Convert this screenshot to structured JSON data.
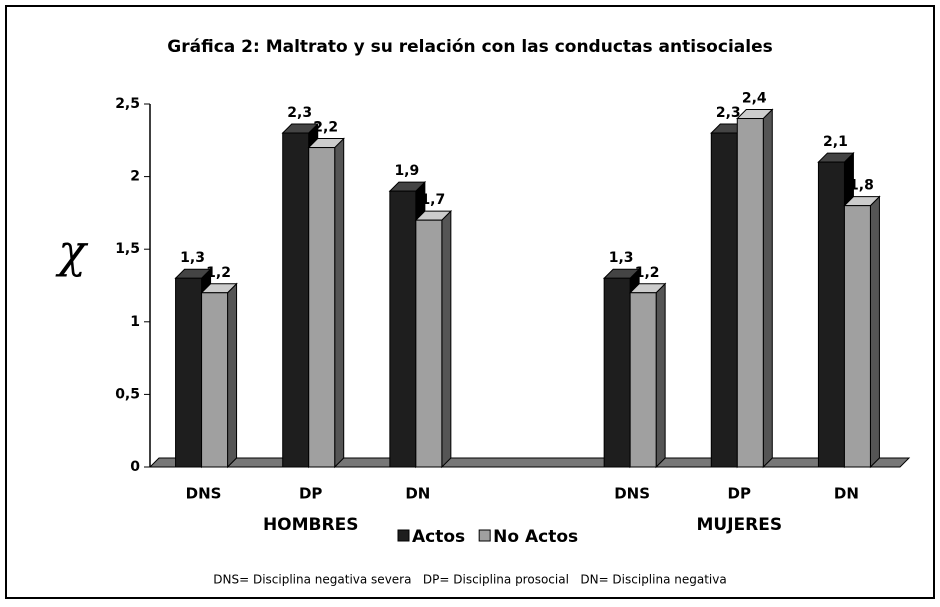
{
  "chart_data": {
    "type": "bar",
    "title": "Gráfica 2: Maltrato y su relación con las conductas antisociales",
    "y_label": "χ",
    "categories": [
      "DNS",
      "DP",
      "DN",
      null,
      "DNS",
      "DP",
      "DN"
    ],
    "group_labels": [
      "HOMBRES",
      "MUJERES"
    ],
    "series": [
      {
        "name": "Actos",
        "color": "#1e1e1e",
        "values": [
          1.3,
          2.3,
          1.9,
          null,
          1.3,
          2.3,
          2.1
        ],
        "value_labels": [
          "1,3",
          "2,3",
          "1,9",
          null,
          "1,3",
          "2,3",
          "2,1"
        ]
      },
      {
        "name": "No Actos",
        "color": "#a0a0a0",
        "values": [
          1.2,
          2.2,
          1.7,
          null,
          1.2,
          2.4,
          1.8
        ],
        "value_labels": [
          "1,2",
          "2,2",
          "1,7",
          null,
          "1,2",
          "2,4",
          "1,8"
        ]
      }
    ],
    "ylim": [
      0,
      2.5
    ],
    "yticks": [
      0,
      {
        "value": 0.5,
        "label": "0,5"
      },
      1,
      {
        "value": 1.5,
        "label": "1,5"
      },
      2,
      {
        "value": 2.5,
        "label": "2,5"
      }
    ],
    "legend": "bottom",
    "footnote": "DNS= Disciplina negativa severa   DP= Disciplina prosocial   DN= Disciplina negativa"
  }
}
